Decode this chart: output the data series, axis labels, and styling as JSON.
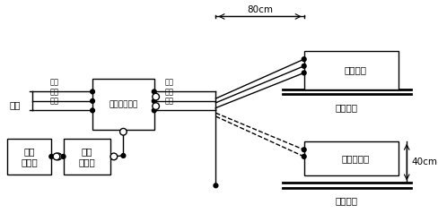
{
  "figsize": [
    4.88,
    2.38
  ],
  "dpi": 100,
  "bg_color": "#ffffff",
  "font_family": "SimHei",
  "labels": {
    "power": "电源",
    "lisn": "人工电源网络",
    "analyzer": "干扰\n分析仪",
    "meter": "干扰\n测量仪",
    "grounded_eut": "接地试品",
    "ground_plane_top": "接地平面",
    "ungrounded_eut": "不接地试品",
    "ground_plane_bot": "接地平板",
    "phase_left": "相线",
    "neutral_left": "中线",
    "ground_left": "地线",
    "phase_right": "相线",
    "neutral_right": "中线",
    "ground_right": "地线",
    "dim_80": "80cm",
    "dim_40": "40cm"
  }
}
